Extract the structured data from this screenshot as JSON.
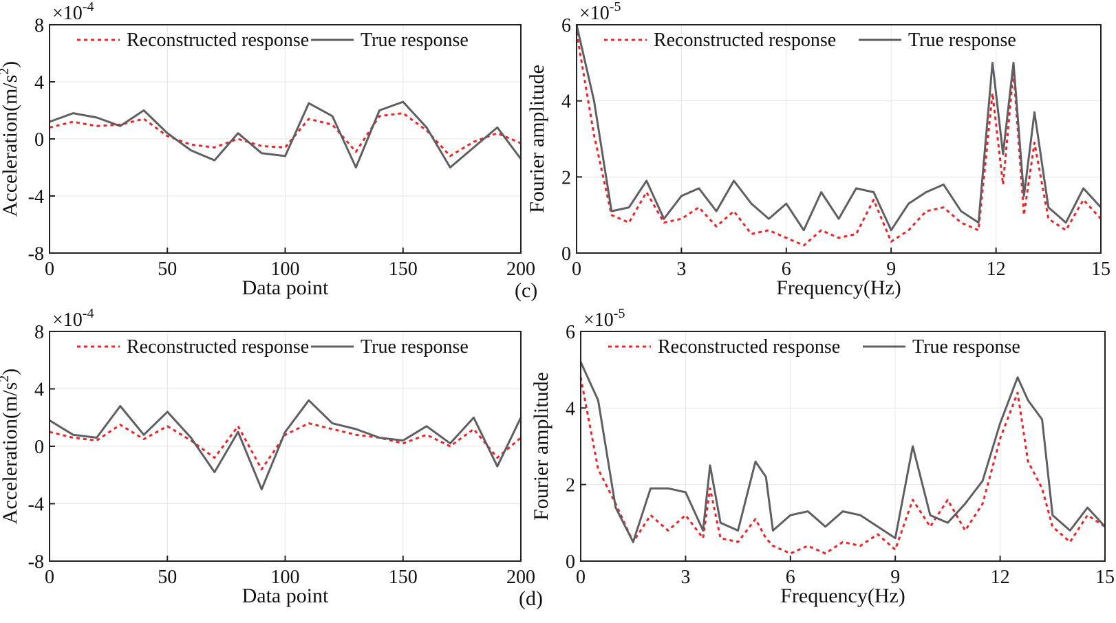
{
  "colors": {
    "reconstructed": "#e8262a",
    "true": "#5f5f63"
  },
  "chart_data": [
    {
      "id": "a",
      "type": "line",
      "panel_label": "",
      "xlabel": "Data point",
      "ylabel": "Acceleration(m/s²)",
      "ylabel_main": "Acceleration(m/s",
      "ylabel_sup": "2",
      "ylabel_end": ")",
      "multiplier": "×10",
      "multiplier_exp": "-4",
      "xlim": [
        0,
        200
      ],
      "ylim": [
        -8,
        8
      ],
      "xticks": [
        0,
        50,
        100,
        150,
        200
      ],
      "yticks": [
        -8,
        -4,
        0,
        4,
        8
      ],
      "yticklabels": [
        "-8",
        "-4",
        "0",
        "4",
        "8"
      ],
      "legend": [
        "Reconstructed response",
        "True response"
      ],
      "series": [
        {
          "name": "Reconstructed response",
          "style": "dotted",
          "x": [
            0,
            10,
            20,
            30,
            40,
            50,
            60,
            70,
            80,
            90,
            100,
            110,
            120,
            130,
            140,
            150,
            160,
            170,
            180,
            190,
            200
          ],
          "y": [
            0.8,
            1.2,
            0.9,
            1.0,
            1.4,
            0.2,
            -0.4,
            -0.6,
            0.0,
            -0.5,
            -0.6,
            1.4,
            1.0,
            -0.9,
            1.6,
            1.8,
            0.6,
            -1.2,
            -0.2,
            0.4,
            -0.3
          ]
        },
        {
          "name": "True response",
          "style": "solid",
          "x": [
            0,
            10,
            20,
            30,
            40,
            50,
            60,
            70,
            80,
            90,
            100,
            110,
            120,
            130,
            140,
            150,
            160,
            170,
            180,
            190,
            200
          ],
          "y": [
            1.2,
            1.8,
            1.5,
            0.9,
            2.0,
            0.4,
            -0.8,
            -1.5,
            0.4,
            -1.0,
            -1.2,
            2.5,
            1.6,
            -2.0,
            2.0,
            2.6,
            0.8,
            -2.0,
            -0.6,
            0.8,
            -1.4
          ]
        }
      ]
    },
    {
      "id": "c",
      "type": "line",
      "panel_label": "(c)",
      "xlabel": "Frequency(Hz)",
      "ylabel": "Fourier amplitude",
      "multiplier": "×10",
      "multiplier_exp": "-5",
      "xlim": [
        0,
        15
      ],
      "ylim": [
        0,
        6
      ],
      "xticks": [
        0,
        3,
        6,
        9,
        12,
        15
      ],
      "yticks": [
        0,
        2,
        4,
        6
      ],
      "yticklabels": [
        "0",
        "2",
        "4",
        "6"
      ],
      "legend": [
        "Reconstructed response",
        "True response"
      ],
      "series": [
        {
          "name": "Reconstructed response",
          "style": "dotted",
          "x": [
            0,
            0.5,
            1,
            1.5,
            2,
            2.5,
            3,
            3.5,
            4,
            4.5,
            5,
            5.5,
            6,
            6.5,
            7,
            7.5,
            8,
            8.5,
            9,
            9.5,
            10,
            10.5,
            11,
            11.5,
            11.9,
            12.2,
            12.5,
            12.8,
            13.1,
            13.5,
            14,
            14.5,
            15
          ],
          "y": [
            5.8,
            3.1,
            1.0,
            0.8,
            1.6,
            0.8,
            0.9,
            1.2,
            0.7,
            1.1,
            0.5,
            0.6,
            0.4,
            0.2,
            0.6,
            0.4,
            0.5,
            1.4,
            0.3,
            0.6,
            1.1,
            1.2,
            0.8,
            0.6,
            4.2,
            1.8,
            4.8,
            1.0,
            2.9,
            0.9,
            0.6,
            1.4,
            0.9
          ]
        },
        {
          "name": "True response",
          "style": "solid",
          "x": [
            0,
            0.5,
            1,
            1.5,
            2,
            2.5,
            3,
            3.5,
            4,
            4.5,
            5,
            5.5,
            6,
            6.5,
            7,
            7.5,
            8,
            8.5,
            9,
            9.5,
            10,
            10.5,
            11,
            11.5,
            11.9,
            12.2,
            12.5,
            12.8,
            13.1,
            13.5,
            14,
            14.5,
            15
          ],
          "y": [
            6.0,
            4.0,
            1.1,
            1.2,
            1.9,
            0.9,
            1.5,
            1.7,
            1.1,
            1.9,
            1.3,
            0.9,
            1.3,
            0.6,
            1.6,
            0.9,
            1.7,
            1.6,
            0.6,
            1.3,
            1.6,
            1.8,
            1.1,
            0.8,
            5.0,
            2.6,
            5.0,
            1.5,
            3.7,
            1.2,
            0.8,
            1.7,
            1.2
          ]
        }
      ]
    },
    {
      "id": "b",
      "type": "line",
      "panel_label": "",
      "xlabel": "Data point",
      "ylabel": "Acceleration(m/s²)",
      "ylabel_main": "Acceleration(m/s",
      "ylabel_sup": "2",
      "ylabel_end": ")",
      "multiplier": "×10",
      "multiplier_exp": "-4",
      "xlim": [
        0,
        200
      ],
      "ylim": [
        -8,
        8
      ],
      "xticks": [
        0,
        50,
        100,
        150,
        200
      ],
      "yticks": [
        -8,
        -4,
        0,
        4,
        8
      ],
      "yticklabels": [
        "-8",
        "-4",
        "0",
        "4",
        "8"
      ],
      "legend": [
        "Reconstructed response",
        "True response"
      ],
      "series": [
        {
          "name": "Reconstructed response",
          "style": "dotted",
          "x": [
            0,
            10,
            20,
            30,
            40,
            50,
            60,
            70,
            80,
            90,
            100,
            110,
            120,
            130,
            140,
            150,
            160,
            170,
            180,
            190,
            200
          ],
          "y": [
            1.0,
            0.6,
            0.4,
            1.5,
            0.5,
            1.4,
            0.4,
            -0.8,
            1.4,
            -1.6,
            0.8,
            1.6,
            1.2,
            0.8,
            0.6,
            0.2,
            0.8,
            0.0,
            1.2,
            -0.8,
            0.6
          ]
        },
        {
          "name": "True response",
          "style": "solid",
          "x": [
            0,
            10,
            20,
            30,
            40,
            50,
            60,
            70,
            80,
            90,
            100,
            110,
            120,
            130,
            140,
            150,
            160,
            170,
            180,
            190,
            200
          ],
          "y": [
            1.8,
            0.8,
            0.6,
            2.8,
            0.8,
            2.4,
            0.6,
            -1.8,
            1.0,
            -3.0,
            1.0,
            3.2,
            1.6,
            1.2,
            0.6,
            0.4,
            1.4,
            0.2,
            2.0,
            -1.4,
            2.0
          ]
        }
      ]
    },
    {
      "id": "d",
      "type": "line",
      "panel_label": "(d)",
      "xlabel": "Frequency(Hz)",
      "ylabel": "Fourier amplitude",
      "multiplier": "×10",
      "multiplier_exp": "-5",
      "xlim": [
        0,
        15
      ],
      "ylim": [
        0,
        6
      ],
      "xticks": [
        0,
        3,
        6,
        9,
        12,
        15
      ],
      "yticks": [
        0,
        2,
        4,
        6
      ],
      "yticklabels": [
        "0",
        "2",
        "4",
        "6"
      ],
      "legend": [
        "Reconstructed response",
        "True response"
      ],
      "series": [
        {
          "name": "Reconstructed response",
          "style": "dotted",
          "x": [
            0,
            0.5,
            1,
            1.5,
            2,
            2.5,
            3,
            3.5,
            3.7,
            4,
            4.5,
            5,
            5.3,
            5.5,
            6,
            6.5,
            7,
            7.5,
            8,
            8.5,
            9,
            9.5,
            10,
            10.5,
            11,
            11.5,
            12,
            12.5,
            12.8,
            13.2,
            13.5,
            14,
            14.5,
            15
          ],
          "y": [
            4.8,
            2.4,
            1.5,
            0.5,
            1.2,
            0.8,
            1.2,
            0.6,
            1.9,
            0.6,
            0.5,
            1.1,
            0.6,
            0.4,
            0.2,
            0.4,
            0.2,
            0.5,
            0.4,
            0.7,
            0.3,
            1.6,
            0.9,
            1.6,
            0.8,
            1.5,
            3.2,
            4.4,
            2.6,
            1.9,
            0.9,
            0.5,
            1.2,
            0.9
          ]
        },
        {
          "name": "True response",
          "style": "solid",
          "x": [
            0,
            0.5,
            1,
            1.5,
            2,
            2.5,
            3,
            3.5,
            3.7,
            4,
            4.5,
            5,
            5.3,
            5.5,
            6,
            6.5,
            7,
            7.5,
            8,
            8.5,
            9,
            9.5,
            10,
            10.5,
            11,
            11.5,
            12,
            12.5,
            12.8,
            13.2,
            13.5,
            14,
            14.5,
            15
          ],
          "y": [
            5.2,
            4.2,
            1.4,
            0.5,
            1.9,
            1.9,
            1.8,
            0.8,
            2.5,
            1.0,
            0.8,
            2.6,
            2.2,
            0.8,
            1.2,
            1.3,
            0.9,
            1.3,
            1.2,
            0.9,
            0.6,
            3.0,
            1.2,
            1.0,
            1.5,
            2.1,
            3.6,
            4.8,
            4.2,
            3.7,
            1.2,
            0.8,
            1.4,
            0.9
          ]
        }
      ]
    }
  ]
}
